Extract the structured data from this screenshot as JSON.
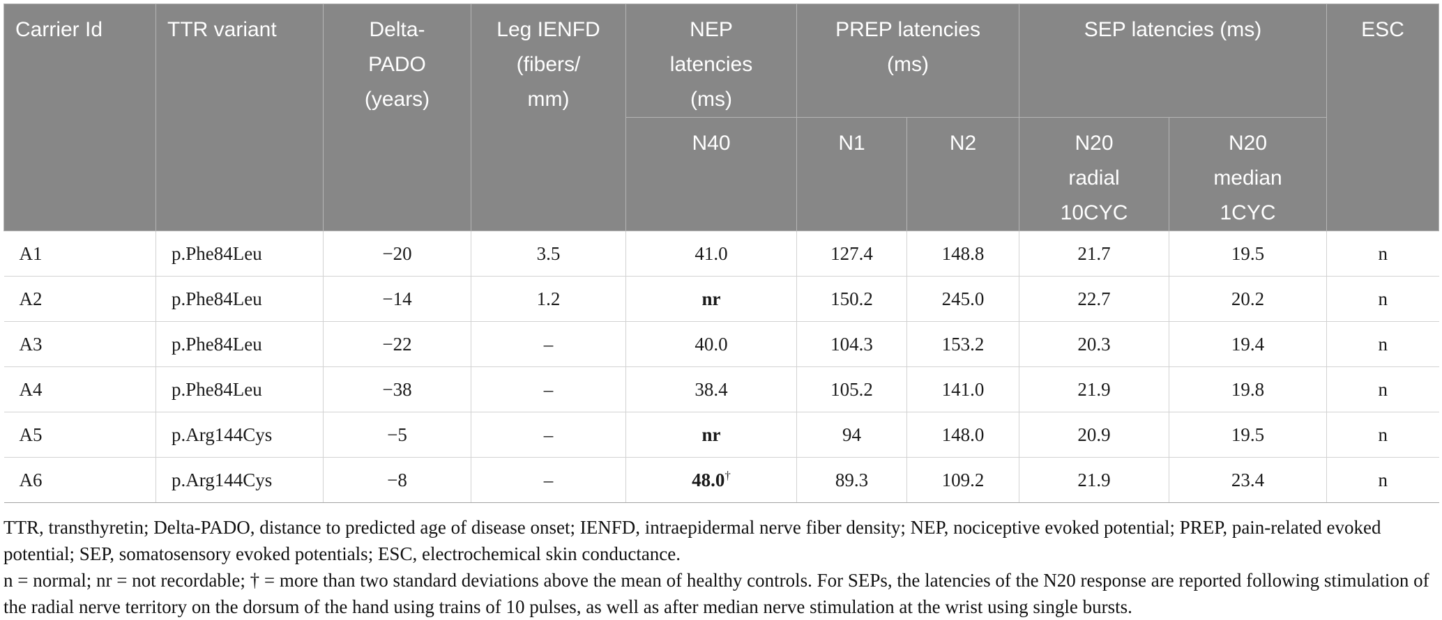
{
  "colors": {
    "header_bg": "#878787",
    "header_text": "#ffffff",
    "header_line": "#b5b5b5",
    "row_line": "#a3a3a3",
    "column_line": "#d2d2d2",
    "body_text": "#1a1a1a"
  },
  "table": {
    "column_keys": [
      "carrier-id",
      "ttr-variant",
      "delta-pado",
      "leg-ienfd",
      "nep-n40",
      "prep-n1",
      "prep-n2",
      "sep-n20-radial-10cyc",
      "sep-n20-median-1cyc",
      "esc"
    ],
    "header_row1": [
      {
        "label": "Carrier Id"
      },
      {
        "label": "TTR variant"
      },
      {
        "label": "Delta-\nPADO\n(years)"
      },
      {
        "label": "Leg IENFD\n(fibers/\nmm)"
      },
      {
        "label": "NEP\nlatencies\n(ms)"
      },
      {
        "label": "PREP latencies\n(ms)"
      },
      {
        "label": "SEP latencies (ms)"
      },
      {
        "label": "ESC"
      }
    ],
    "header_row2": [
      {
        "label": "N40"
      },
      {
        "label": "N1"
      },
      {
        "label": "N2"
      },
      {
        "label": "N20\nradial\n10CYC"
      },
      {
        "label": "N20\nmedian\n1CYC"
      }
    ],
    "rows": [
      {
        "cells": [
          {
            "t": "A1"
          },
          {
            "t": "p.Phe84Leu"
          },
          {
            "t": "−20"
          },
          {
            "t": "3.5"
          },
          {
            "t": "41.0"
          },
          {
            "t": "127.4"
          },
          {
            "t": "148.8"
          },
          {
            "t": "21.7"
          },
          {
            "t": "19.5"
          },
          {
            "t": "n"
          }
        ]
      },
      {
        "cells": [
          {
            "t": "A2"
          },
          {
            "t": "p.Phe84Leu"
          },
          {
            "t": "−14"
          },
          {
            "t": "1.2"
          },
          {
            "t": "nr",
            "bold": true
          },
          {
            "t": "150.2"
          },
          {
            "t": "245.0"
          },
          {
            "t": "22.7"
          },
          {
            "t": "20.2"
          },
          {
            "t": "n"
          }
        ]
      },
      {
        "cells": [
          {
            "t": "A3"
          },
          {
            "t": "p.Phe84Leu"
          },
          {
            "t": "−22"
          },
          {
            "t": "–"
          },
          {
            "t": "40.0"
          },
          {
            "t": "104.3"
          },
          {
            "t": "153.2"
          },
          {
            "t": "20.3"
          },
          {
            "t": "19.4"
          },
          {
            "t": "n"
          }
        ]
      },
      {
        "cells": [
          {
            "t": "A4"
          },
          {
            "t": "p.Phe84Leu"
          },
          {
            "t": "−38"
          },
          {
            "t": "–"
          },
          {
            "t": "38.4"
          },
          {
            "t": "105.2"
          },
          {
            "t": "141.0"
          },
          {
            "t": "21.9"
          },
          {
            "t": "19.8"
          },
          {
            "t": "n"
          }
        ]
      },
      {
        "cells": [
          {
            "t": "A5"
          },
          {
            "t": "p.Arg144Cys"
          },
          {
            "t": "−5"
          },
          {
            "t": "–"
          },
          {
            "t": "nr",
            "bold": true
          },
          {
            "t": "94"
          },
          {
            "t": "148.0"
          },
          {
            "t": "20.9"
          },
          {
            "t": "19.5"
          },
          {
            "t": "n"
          }
        ]
      },
      {
        "cells": [
          {
            "t": "A6"
          },
          {
            "t": "p.Arg144Cys"
          },
          {
            "t": "−8"
          },
          {
            "t": "–"
          },
          {
            "t": "48.0",
            "bold": true,
            "sup": "†"
          },
          {
            "t": "89.3"
          },
          {
            "t": "109.2"
          },
          {
            "t": "21.9"
          },
          {
            "t": "23.4"
          },
          {
            "t": "n"
          }
        ]
      }
    ]
  },
  "footnotes": {
    "abbreviations": "TTR, transthyretin; Delta-PADO, distance to predicted age of disease onset; IENFD, intraepidermal nerve fiber density; NEP, nociceptive evoked potential; PREP, pain-related evoked potential; SEP, somatosensory evoked potentials; ESC, electrochemical skin conductance.",
    "notes": "n = normal; nr = not recordable; † = more than two standard deviations above the mean of healthy controls. For SEPs, the latencies of the N20 response are reported following stimulation of the radial nerve territory on the dorsum of the hand using trains of 10 pulses, as well as after median nerve stimulation at the wrist using single bursts."
  }
}
